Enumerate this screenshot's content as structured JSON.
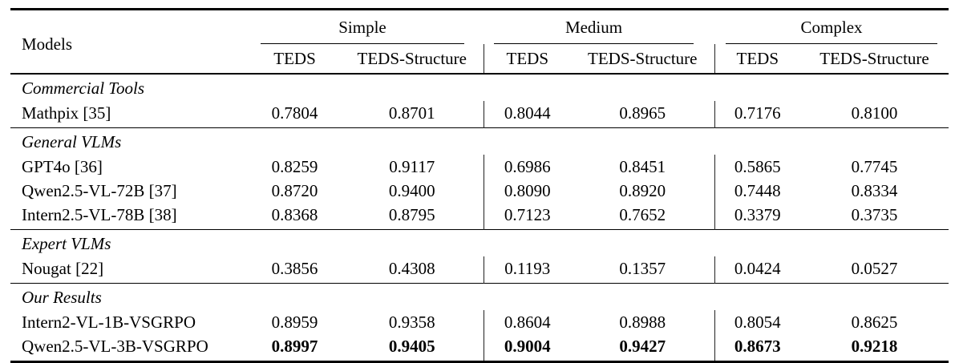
{
  "page": {
    "background": "#ffffff",
    "text_color": "#000000",
    "rule_color": "#000000"
  },
  "table": {
    "models_header": "Models",
    "groups": [
      {
        "label": "Simple"
      },
      {
        "label": "Medium"
      },
      {
        "label": "Complex"
      }
    ],
    "subheader": {
      "teds": "TEDS",
      "teds_structure": "TEDS-Structure"
    },
    "sections": [
      {
        "label": "Commercial Tools",
        "rows": [
          {
            "model": "Mathpix [35]",
            "bold": false,
            "values": [
              "0.7804",
              "0.8701",
              "0.8044",
              "0.8965",
              "0.7176",
              "0.8100"
            ]
          }
        ]
      },
      {
        "label": "General VLMs",
        "rows": [
          {
            "model": "GPT4o [36]",
            "bold": false,
            "values": [
              "0.8259",
              "0.9117",
              "0.6986",
              "0.8451",
              "0.5865",
              "0.7745"
            ]
          },
          {
            "model": "Qwen2.5-VL-72B [37]",
            "bold": false,
            "values": [
              "0.8720",
              "0.9400",
              "0.8090",
              "0.8920",
              "0.7448",
              "0.8334"
            ]
          },
          {
            "model": "Intern2.5-VL-78B [38]",
            "bold": false,
            "values": [
              "0.8368",
              "0.8795",
              "0.7123",
              "0.7652",
              "0.3379",
              "0.3735"
            ]
          }
        ]
      },
      {
        "label": "Expert VLMs",
        "rows": [
          {
            "model": "Nougat [22]",
            "bold": false,
            "values": [
              "0.3856",
              "0.4308",
              "0.1193",
              "0.1357",
              "0.0424",
              "0.0527"
            ]
          }
        ]
      },
      {
        "label": "Our Results",
        "rows": [
          {
            "model": "Intern2-VL-1B-VSGRPO",
            "bold": false,
            "values": [
              "0.8959",
              "0.9358",
              "0.8604",
              "0.8988",
              "0.8054",
              "0.8625"
            ]
          },
          {
            "model": "Qwen2.5-VL-3B-VSGRPO",
            "bold": true,
            "values": [
              "0.8997",
              "0.9405",
              "0.9004",
              "0.9427",
              "0.8673",
              "0.9218"
            ]
          }
        ]
      }
    ]
  }
}
